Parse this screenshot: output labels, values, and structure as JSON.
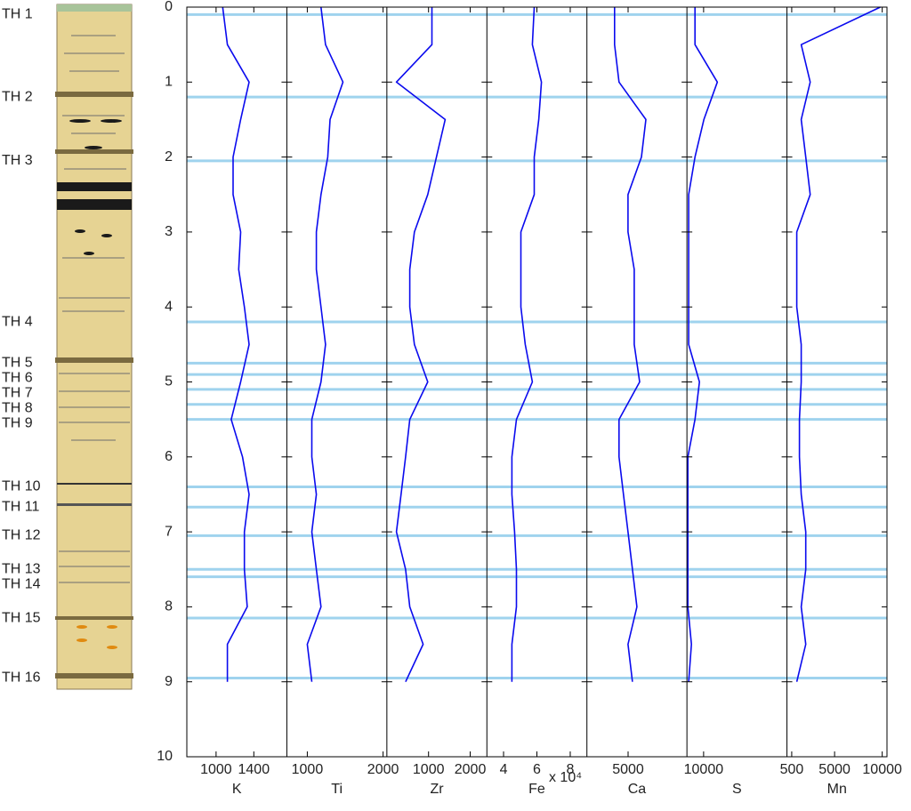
{
  "chart_data": {
    "type": "line",
    "ylim": [
      0,
      10
    ],
    "yticks": [
      0,
      1,
      2,
      3,
      4,
      5,
      6,
      7,
      8,
      9,
      10
    ],
    "y_reversed": true,
    "name_color": "#ff1a1a",
    "layer_color": "#9fd3ee",
    "depth": [
      0,
      0.5,
      1,
      1.5,
      2,
      2.5,
      3,
      3.5,
      4,
      4.5,
      5,
      5.5,
      6,
      6.5,
      7,
      7.5,
      8,
      8.5,
      9
    ],
    "panels": [
      {
        "name": "K",
        "color": "#0a0aee",
        "xlim": [
          690,
          1750
        ],
        "xticks": [
          1000,
          1400
        ],
        "values": [
          1070,
          1120,
          1350,
          1260,
          1180,
          1180,
          1260,
          1240,
          1300,
          1350,
          1260,
          1160,
          1280,
          1350,
          1300,
          1300,
          1330,
          1120,
          1120
        ]
      },
      {
        "name": "Ti",
        "color": "#0a0aee",
        "xlim": [
          730,
          2050
        ],
        "xticks": [
          1000,
          2000
        ],
        "values": [
          1180,
          1240,
          1470,
          1300,
          1270,
          1180,
          1120,
          1120,
          1180,
          1240,
          1180,
          1060,
          1060,
          1120,
          1060,
          1120,
          1180,
          1000,
          1060
        ]
      },
      {
        "name": "Zr",
        "color": "#0a0aee",
        "xlim": [
          0,
          2400
        ],
        "xticks": [
          1000,
          2000
        ],
        "values": [
          1080,
          1080,
          230,
          1400,
          1190,
          980,
          660,
          550,
          550,
          660,
          980,
          550,
          450,
          340,
          230,
          450,
          550,
          870,
          450
        ]
      },
      {
        "name": "Fe",
        "color": "#0a0aee",
        "xlim": [
          3,
          9
        ],
        "xticks": [
          4,
          6,
          8
        ],
        "offset_label": "x 10⁴",
        "values": [
          5.84,
          5.73,
          6.27,
          6.11,
          5.84,
          5.84,
          5.04,
          5.04,
          5.04,
          5.3,
          5.73,
          4.77,
          4.5,
          4.5,
          4.66,
          4.77,
          4.77,
          4.5,
          4.5
        ]
      },
      {
        "name": "Ca",
        "color": "#0a0aee",
        "xlim": [
          1500,
          10000
        ],
        "xticks": [
          5000
        ],
        "values": [
          3850,
          3850,
          4230,
          6510,
          6130,
          4990,
          4990,
          5520,
          5520,
          5520,
          5980,
          4230,
          4230,
          4610,
          4990,
          5370,
          5750,
          4990,
          5370
        ]
      },
      {
        "name": "S",
        "color": "#0a0aee",
        "xlim": [
          0,
          60000
        ],
        "xticks": [
          10000
        ],
        "values": [
          4820,
          4820,
          18210,
          10180,
          4820,
          1070,
          1070,
          1070,
          1070,
          1070,
          7500,
          4820,
          540,
          540,
          540,
          540,
          540,
          2680,
          1070
        ]
      },
      {
        "name": "Mn",
        "color": "#0a0aee",
        "xlim": [
          0,
          10500
        ],
        "xticks": [
          500,
          5000,
          10000
        ],
        "values": [
          9800,
          1500,
          2440,
          1500,
          1970,
          2440,
          1030,
          1030,
          1030,
          1500,
          1500,
          1310,
          1310,
          1500,
          1970,
          1970,
          1500,
          1970,
          1030
        ]
      }
    ],
    "layers": [
      {
        "label": "TH 1",
        "depth": 0.1
      },
      {
        "label": "TH 2",
        "depth": 1.2
      },
      {
        "label": "TH 3",
        "depth": 2.05
      },
      {
        "label": "TH 4",
        "depth": 4.2
      },
      {
        "label": "TH 5",
        "depth": 4.75
      },
      {
        "label": "TH 6",
        "depth": 4.9
      },
      {
        "label": "TH 7",
        "depth": 5.1
      },
      {
        "label": "TH 8",
        "depth": 5.3
      },
      {
        "label": "TH 9",
        "depth": 5.5
      },
      {
        "label": "TH 10",
        "depth": 6.4
      },
      {
        "label": "TH 11",
        "depth": 6.67
      },
      {
        "label": "TH 12",
        "depth": 7.05
      },
      {
        "label": "TH 13",
        "depth": 7.5
      },
      {
        "label": "TH 14",
        "depth": 7.6
      },
      {
        "label": "TH 15",
        "depth": 8.15
      },
      {
        "label": "TH 16",
        "depth": 8.95
      }
    ]
  }
}
